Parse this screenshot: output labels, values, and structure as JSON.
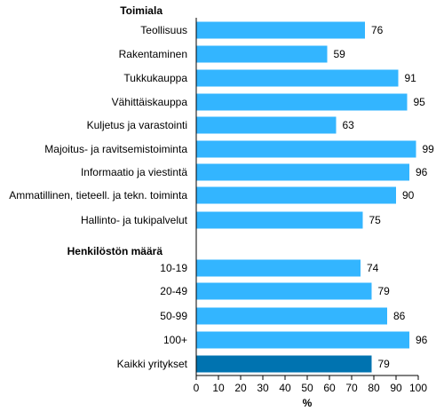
{
  "chart_data": {
    "type": "bar",
    "orientation": "horizontal",
    "xlabel": "%",
    "xlim": [
      0,
      100
    ],
    "xticks": [
      "0",
      "10",
      "20",
      "30",
      "40",
      "50",
      "60",
      "70",
      "80",
      "90",
      "100"
    ],
    "grid": false,
    "legend": "none",
    "groups": [
      {
        "heading": "Toimiala",
        "categories": [
          "Teollisuus",
          "Rakentaminen",
          "Tukkukauppa",
          "Vähittäiskauppa",
          "Kuljetus ja varastointi",
          "Majoitus- ja ravitsemistoiminta",
          "Informaatio ja viestintä",
          "Ammatillinen, tieteell. ja tekn. toiminta",
          "Hallinto- ja tukipalvelut"
        ],
        "values": [
          76,
          59,
          91,
          95,
          63,
          99,
          96,
          90,
          75
        ]
      },
      {
        "heading": "Henkilöstön määrä",
        "categories": [
          "10-19",
          "20-49",
          "50-99",
          "100+",
          "Kaikki yritykset"
        ],
        "values": [
          74,
          79,
          86,
          96,
          79
        ]
      }
    ],
    "colors": {
      "bar": "#33b5ff",
      "total_bar": "#0073b0",
      "axis": "#000000"
    }
  }
}
